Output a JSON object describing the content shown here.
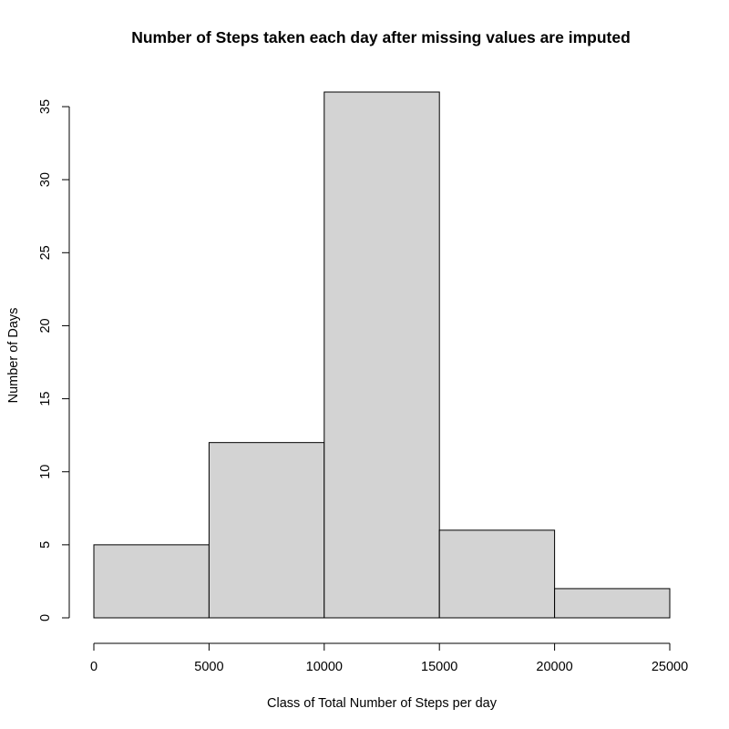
{
  "chart_data": {
    "type": "bar",
    "histogram": true,
    "title": "Number of Steps taken each day after missing values are imputed",
    "xlabel": "Class of Total Number of Steps per day",
    "ylabel": "Number of Days",
    "bins": [
      {
        "start": 0,
        "end": 5000,
        "count": 5
      },
      {
        "start": 5000,
        "end": 10000,
        "count": 12
      },
      {
        "start": 10000,
        "end": 15000,
        "count": 36
      },
      {
        "start": 15000,
        "end": 20000,
        "count": 6
      },
      {
        "start": 20000,
        "end": 25000,
        "count": 2
      }
    ],
    "x_ticks": [
      0,
      5000,
      10000,
      15000,
      20000,
      25000
    ],
    "y_ticks": [
      0,
      5,
      10,
      15,
      20,
      25,
      30,
      35
    ],
    "xlim": [
      0,
      25000
    ],
    "ylim": [
      0,
      36
    ],
    "grid": false,
    "bar_fill": "#d3d3d3",
    "bar_stroke": "#000000"
  }
}
